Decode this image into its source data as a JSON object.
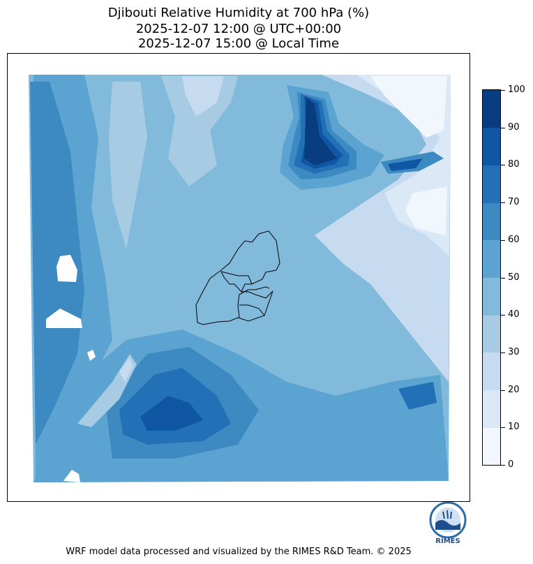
{
  "title": {
    "line1": "Djibouti Relative Humidity at 700 hPa (%)",
    "line2": "2025-12-07 12:00 @ UTC+00:00",
    "line3": "2025-12-07 15:00 @ Local Time"
  },
  "colorbar": {
    "colors": [
      "#f2f7fd",
      "#dbe9f6",
      "#c6dbef",
      "#a6cbe3",
      "#82badb",
      "#5ba3d0",
      "#3d8ac3",
      "#2270b5",
      "#0f57a2",
      "#083d7f"
    ],
    "labels": [
      "0",
      "10",
      "20",
      "30",
      "40",
      "50",
      "60",
      "70",
      "80",
      "90",
      "100"
    ]
  },
  "map": {
    "base_color": "#82badb",
    "logo_text": "RIMES"
  },
  "footer": "WRF model data processed and visualized by the RIMES R&D Team. © 2025"
}
